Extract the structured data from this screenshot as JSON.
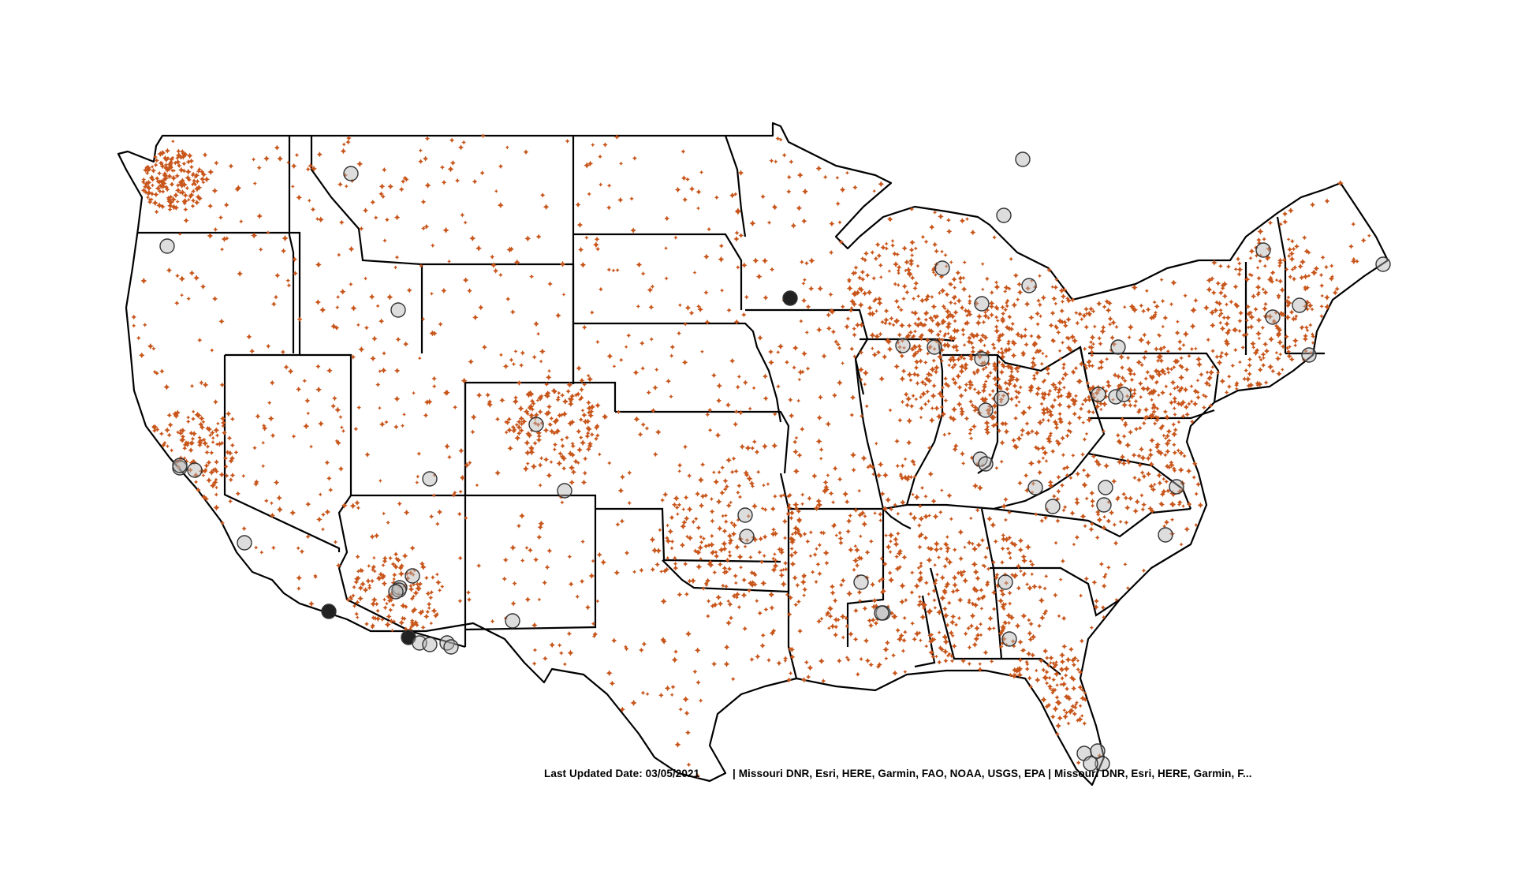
{
  "map": {
    "region": "contiguous-united-states",
    "projection": "albers-like",
    "point_color": "#c8551a",
    "ring_color": "#555555",
    "ring_fill_dark": "#222222",
    "boundary_color": "#000000",
    "background": "#ffffff"
  },
  "attribution": {
    "date_label": "Last Updated Date: 03/05/2021",
    "separator": "|",
    "credits": "Missouri DNR, Esri, HERE, Garmin, FAO, NOAA, USGS, EPA | Missouri DNR, Esri, HERE, Garmin, F..."
  }
}
